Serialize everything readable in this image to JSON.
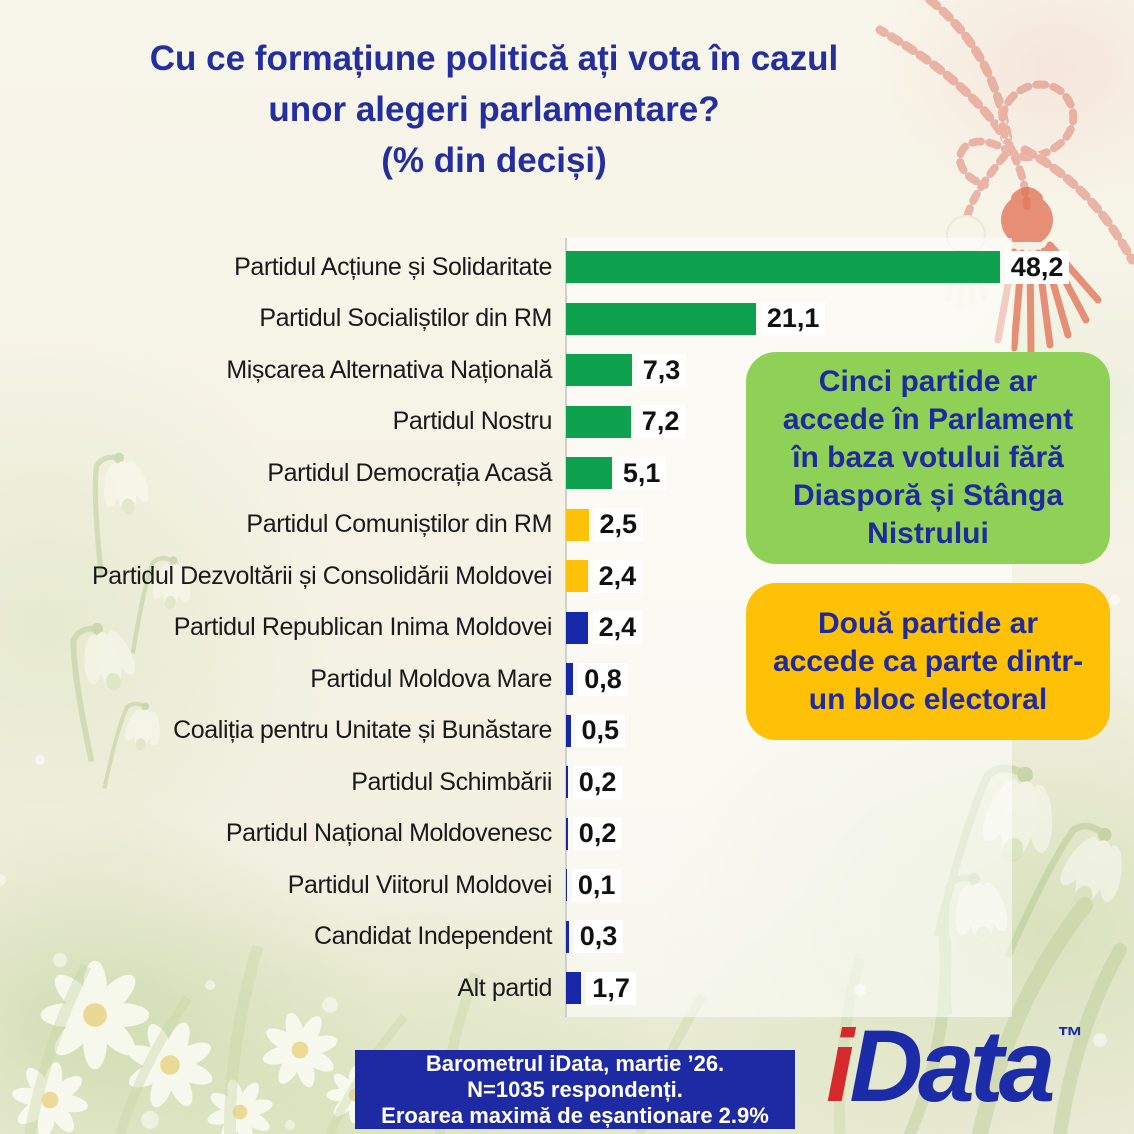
{
  "title": {
    "line1": "Cu ce formațiune politică ați vota în cazul",
    "line2": "unor alegeri parlamentare?",
    "line3": "(% din deciși)"
  },
  "chart_data": {
    "type": "bar",
    "orientation": "horizontal",
    "title": "Cu ce formațiune politică ați vota în cazul unor alegeri parlamentare? (% din deciși)",
    "xlim": [
      0,
      50
    ],
    "grid": false,
    "categories": [
      "Partidul Acțiune și Solidaritate",
      "Partidul Socialiștilor din RM",
      "Mișcarea Alternativa Națională",
      "Partidul Nostru",
      "Partidul Democrația Acasă",
      "Partidul Comuniștilor din RM",
      "Partidul Dezvoltării și Consolidării Moldovei",
      "Partidul Republican Inima Moldovei",
      "Partidul Moldova Mare",
      "Coaliția pentru Unitate și Bunăstare",
      "Partidul Schimbării",
      "Partidul Național Moldovenesc",
      "Partidul Viitorul Moldovei",
      "Candidat Independent",
      "Alt partid"
    ],
    "values": [
      48.2,
      21.1,
      7.3,
      7.2,
      5.1,
      2.5,
      2.4,
      2.4,
      0.8,
      0.5,
      0.2,
      0.2,
      0.1,
      0.3,
      1.7
    ],
    "value_labels": [
      "48,2",
      "21,1",
      "7,3",
      "7,2",
      "5,1",
      "2,5",
      "2,4",
      "2,4",
      "0,8",
      "0,5",
      "0,2",
      "0,2",
      "0,1",
      "0,3",
      "1,7"
    ],
    "bar_color_keys": [
      "green",
      "green",
      "green",
      "green",
      "green",
      "yellow",
      "yellow",
      "blue",
      "blue",
      "blue",
      "blue",
      "blue",
      "blue",
      "blue",
      "blue"
    ]
  },
  "annotations": {
    "green_box": {
      "lines": [
        "Cinci partide ar",
        "accede în Parlament",
        "în baza votului fără",
        "Diasporă și Stânga",
        "Nistrului"
      ]
    },
    "yellow_box": {
      "lines": [
        "Două partide ar",
        "accede ca parte dintr-",
        "un bloc electoral"
      ]
    }
  },
  "footer": {
    "lines": [
      "Barometrul iData, martie ’26.",
      "N=1035 respondenți.",
      "Eroarea maximă de eșantionare 2.9%"
    ]
  },
  "logo": {
    "i": "i",
    "data": "Data",
    "tm": "™"
  },
  "colors": {
    "title_blue": "#232E9F",
    "bar_green": "#0EA24F",
    "bar_yellow": "#FFC008",
    "bar_blue": "#1628A7",
    "box_green_bg": "#8FD156",
    "box_yellow_bg": "#FFC008",
    "box_text_blue": "#1D2B9E",
    "footer_bg": "#1D2AA4",
    "footer_text": "#FFFFFF",
    "logo_red": "#D6292B",
    "logo_blue": "#1C2CA8",
    "label_color": "#1A1A1A",
    "value_color": "#111111",
    "value_chip_bg": "#FFFFFF",
    "axis_color": "#CFCFCF"
  }
}
